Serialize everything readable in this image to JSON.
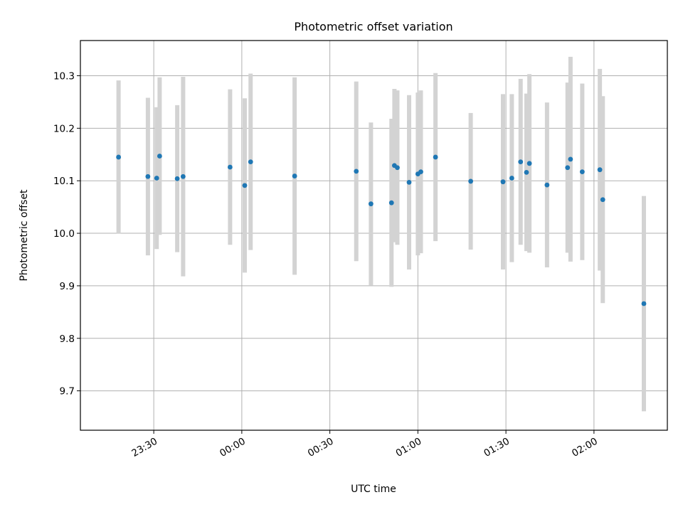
{
  "chart_data": {
    "type": "scatter",
    "title": "Photometric offset variation",
    "xlabel": "UTC time",
    "ylabel": "Photometric offset",
    "x_ticks": [
      "23:30",
      "00:00",
      "00:30",
      "01:00",
      "01:30",
      "02:00"
    ],
    "x_tick_minutes": [
      0,
      30,
      60,
      90,
      120,
      150
    ],
    "xlim_minutes": [
      -25,
      175
    ],
    "y_ticks": [
      "9.7",
      "9.8",
      "9.9",
      "10.0",
      "10.1",
      "10.2",
      "10.3"
    ],
    "y_tick_values": [
      9.7,
      9.8,
      9.9,
      10.0,
      10.1,
      10.2,
      10.3
    ],
    "ylim": [
      9.625,
      10.367
    ],
    "grid": true,
    "colors": {
      "point": "#1f77b4",
      "errorbar": "#d3d3d3"
    },
    "series": [
      {
        "points": [
          {
            "t": "23:18",
            "y": 10.145,
            "err": 0.146
          },
          {
            "t": "23:28",
            "y": 10.108,
            "err": 0.15
          },
          {
            "t": "23:31",
            "y": 10.105,
            "err": 0.135
          },
          {
            "t": "23:32",
            "y": 10.147,
            "err": 0.15
          },
          {
            "t": "23:38",
            "y": 10.104,
            "err": 0.14
          },
          {
            "t": "23:40",
            "y": 10.108,
            "err": 0.19
          },
          {
            "t": "23:56",
            "y": 10.126,
            "err": 0.148
          },
          {
            "t": "00:01",
            "y": 10.091,
            "err": 0.166
          },
          {
            "t": "00:03",
            "y": 10.136,
            "err": 0.168
          },
          {
            "t": "00:18",
            "y": 10.109,
            "err": 0.188
          },
          {
            "t": "00:39",
            "y": 10.118,
            "err": 0.171
          },
          {
            "t": "00:44",
            "y": 10.056,
            "err": 0.155
          },
          {
            "t": "00:51",
            "y": 10.058,
            "err": 0.16
          },
          {
            "t": "00:52",
            "y": 10.129,
            "err": 0.146
          },
          {
            "t": "00:53",
            "y": 10.125,
            "err": 0.147
          },
          {
            "t": "00:57",
            "y": 10.097,
            "err": 0.166
          },
          {
            "t": "01:00",
            "y": 10.113,
            "err": 0.155
          },
          {
            "t": "01:01",
            "y": 10.117,
            "err": 0.155
          },
          {
            "t": "01:06",
            "y": 10.145,
            "err": 0.16
          },
          {
            "t": "01:18",
            "y": 10.099,
            "err": 0.13
          },
          {
            "t": "01:29",
            "y": 10.098,
            "err": 0.167
          },
          {
            "t": "01:32",
            "y": 10.105,
            "err": 0.16
          },
          {
            "t": "01:35",
            "y": 10.136,
            "err": 0.158
          },
          {
            "t": "01:37",
            "y": 10.116,
            "err": 0.15
          },
          {
            "t": "01:38",
            "y": 10.133,
            "err": 0.17
          },
          {
            "t": "01:44",
            "y": 10.092,
            "err": 0.157
          },
          {
            "t": "01:51",
            "y": 10.125,
            "err": 0.162
          },
          {
            "t": "01:52",
            "y": 10.141,
            "err": 0.195
          },
          {
            "t": "01:56",
            "y": 10.117,
            "err": 0.168
          },
          {
            "t": "02:02",
            "y": 10.121,
            "err": 0.192
          },
          {
            "t": "02:03",
            "y": 10.064,
            "err": 0.197
          },
          {
            "t": "02:17",
            "y": 9.866,
            "err": 0.205
          }
        ]
      }
    ]
  }
}
